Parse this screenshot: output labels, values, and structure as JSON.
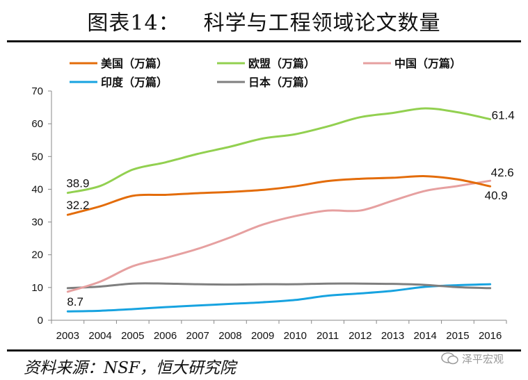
{
  "header": {
    "figure_no": "图表14：",
    "title": "科学与工程领域论文数量"
  },
  "footer": {
    "source": "资料来源：NSF，恒大研究院",
    "watermark": "泽平宏观"
  },
  "chart_data": {
    "type": "line",
    "title": "科学与工程领域论文数量",
    "xlabel": "",
    "ylabel": "",
    "ylim": [
      0,
      70
    ],
    "yticks": [
      0,
      10,
      20,
      30,
      40,
      50,
      60,
      70
    ],
    "categories": [
      "2003",
      "2004",
      "2005",
      "2006",
      "2007",
      "2008",
      "2009",
      "2010",
      "2011",
      "2012",
      "2013",
      "2014",
      "2015",
      "2016"
    ],
    "grid": false,
    "legend_position": "top",
    "series": [
      {
        "name": "美国（万篇）",
        "color": "#E36C0A",
        "values": [
          32.2,
          34.8,
          38.0,
          38.3,
          38.8,
          39.2,
          39.8,
          40.9,
          42.5,
          43.2,
          43.5,
          44.0,
          43.0,
          40.9
        ]
      },
      {
        "name": "欧盟（万篇）",
        "color": "#92D050",
        "values": [
          38.9,
          41.0,
          46.0,
          48.2,
          50.8,
          53.0,
          55.5,
          56.8,
          59.2,
          62.0,
          63.3,
          64.7,
          63.5,
          61.4
        ]
      },
      {
        "name": "中国（万篇）",
        "color": "#E6A0A0",
        "values": [
          8.7,
          11.8,
          16.5,
          19.0,
          21.8,
          25.3,
          29.2,
          31.8,
          33.5,
          33.5,
          36.5,
          39.5,
          41.0,
          42.6
        ]
      },
      {
        "name": "印度（万篇）",
        "color": "#17A3E0",
        "values": [
          2.7,
          2.9,
          3.4,
          4.0,
          4.5,
          5.0,
          5.5,
          6.2,
          7.5,
          8.2,
          9.0,
          10.2,
          10.7,
          11.0
        ]
      },
      {
        "name": "日本（万篇）",
        "color": "#7F7F7F",
        "values": [
          9.8,
          10.3,
          11.2,
          11.2,
          11.0,
          10.9,
          11.0,
          11.0,
          11.2,
          11.2,
          11.1,
          10.8,
          10.1,
          9.8
        ]
      }
    ],
    "annotations": [
      "38.9",
      "32.2",
      "8.7",
      "61.4",
      "42.6",
      "40.9"
    ]
  }
}
